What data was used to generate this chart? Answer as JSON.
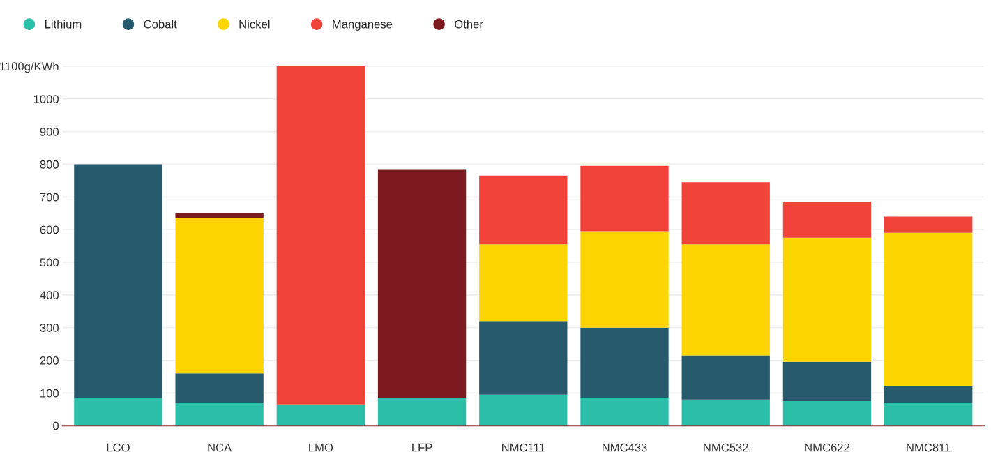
{
  "chart_data": {
    "type": "bar",
    "stacked": true,
    "categories": [
      "LCO",
      "NCA",
      "LMO",
      "LFP",
      "NMC111",
      "NMC433",
      "NMC532",
      "NMC622",
      "NMC811"
    ],
    "series": [
      {
        "name": "Lithium",
        "color": "#2bbfaa",
        "values": [
          85,
          70,
          65,
          85,
          95,
          85,
          80,
          75,
          70
        ]
      },
      {
        "name": "Cobalt",
        "color": "#265a6c",
        "values": [
          715,
          90,
          null,
          null,
          225,
          215,
          135,
          120,
          50
        ]
      },
      {
        "name": "Nickel",
        "color": "#fcd500",
        "values": [
          null,
          475,
          null,
          null,
          235,
          295,
          340,
          380,
          470
        ]
      },
      {
        "name": "Manganese",
        "color": "#f2433a",
        "values": [
          null,
          null,
          1035,
          null,
          210,
          200,
          190,
          110,
          50
        ]
      },
      {
        "name": "Other",
        "color": "#7c1a1f",
        "values": [
          null,
          15,
          null,
          700,
          null,
          null,
          null,
          null,
          null
        ]
      }
    ],
    "ylim": [
      0,
      1100
    ],
    "yticks": [
      0,
      100,
      200,
      300,
      400,
      500,
      600,
      700,
      800,
      900,
      1000,
      {
        "value": 1100,
        "label": "1100g/KWh"
      }
    ],
    "grid": "y",
    "legend": "top left",
    "marker": "circle"
  }
}
